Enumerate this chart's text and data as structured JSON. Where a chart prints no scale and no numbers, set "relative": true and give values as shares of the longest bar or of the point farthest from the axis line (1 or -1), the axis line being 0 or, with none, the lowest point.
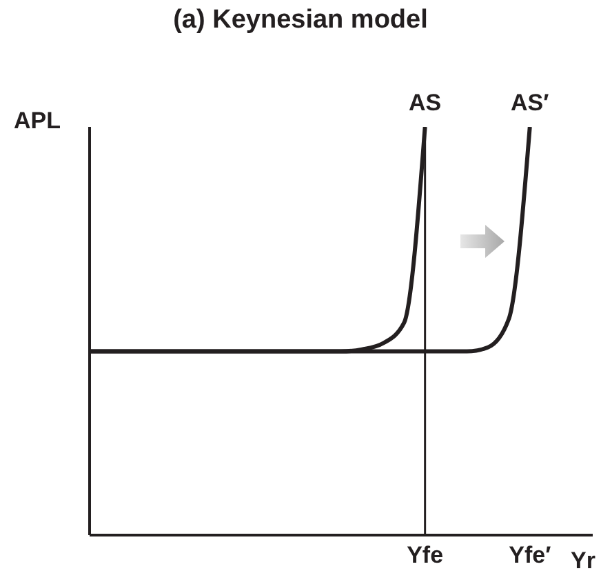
{
  "chart_data": {
    "type": "line",
    "title": "(a) Keynesian model",
    "ylabel": "APL",
    "xlabel": "Yr",
    "relative": true,
    "categories": [
      null,
      null,
      null,
      null,
      null,
      null,
      null,
      null,
      null,
      null,
      null,
      null,
      null,
      null,
      null,
      null,
      "Yfe",
      null,
      null,
      null,
      null,
      "Yfe′",
      null,
      null,
      null
    ],
    "series": [
      {
        "name": "AS",
        "color": "#231f20",
        "values": [
          0.45,
          0.45,
          0.45,
          0.45,
          0.45,
          0.45,
          0.45,
          0.45,
          0.45,
          0.45,
          0.45,
          0.45,
          0.45,
          0.455,
          0.47,
          0.52,
          1,
          null,
          null,
          null,
          null,
          null,
          null,
          null,
          null
        ]
      },
      {
        "name": "AS′",
        "color": "#231f20",
        "values": [
          0.45,
          0.45,
          0.45,
          0.45,
          0.45,
          0.45,
          0.45,
          0.45,
          0.45,
          0.45,
          0.45,
          0.45,
          0.45,
          0.45,
          0.45,
          0.45,
          0.45,
          0.45,
          0.45,
          0.46,
          0.53,
          1,
          null,
          null,
          null
        ]
      }
    ],
    "ref_lines": [
      {
        "axis": "x",
        "value": "Yfe",
        "color": "#231f20"
      }
    ],
    "legend": false,
    "grid": false,
    "marker": "none",
    "line_style": "solid"
  }
}
